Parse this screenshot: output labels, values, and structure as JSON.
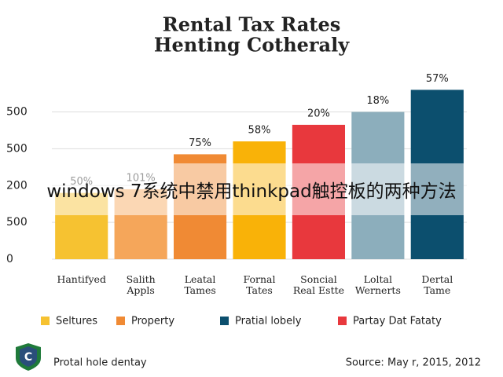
{
  "chart_data": {
    "type": "bar",
    "title": [
      "Rental Tax Rates",
      "Henting Cotheraly"
    ],
    "categories": [
      "Hantifyed",
      "Salith\nAppls",
      "Leatal\nTames",
      "Fornal\nTates",
      "Soncial\nReal Estte",
      "Loltal\nWernerts",
      "Dertal\nTame"
    ],
    "values": [
      1.8,
      1.9,
      2.85,
      3.2,
      3.65,
      4.0,
      4.6
    ],
    "value_labels": [
      "50%",
      "101%",
      "75%",
      "58%",
      "20%",
      "18%",
      "57%"
    ],
    "colors": [
      "#f6c231",
      "#f5a65a",
      "#f08a34",
      "#f9b208",
      "#e8383d",
      "#8caebc",
      "#0c4f6e"
    ],
    "ylim": [
      0,
      4.8
    ],
    "yticks": [
      {
        "value": 0,
        "label": "0"
      },
      {
        "value": 1,
        "label": "500"
      },
      {
        "value": 2,
        "label": "200"
      },
      {
        "value": 3,
        "label": "500"
      },
      {
        "value": 4,
        "label": "500"
      }
    ],
    "grid": true,
    "legend": [
      {
        "name": "Seltures",
        "color": "#f6c231"
      },
      {
        "name": "Property",
        "color": "#f08a34"
      },
      {
        "name": "Pratial lobely",
        "color": "#0c4f6e"
      },
      {
        "name": "Partay Dat Fataty",
        "color": "#e8383d"
      }
    ],
    "footer_left": "Protal hole dentay",
    "source": "Source: May r, 2015, 2012"
  },
  "overlay_text": "windows 7系统中禁用thinkpad触控板的两种方法"
}
